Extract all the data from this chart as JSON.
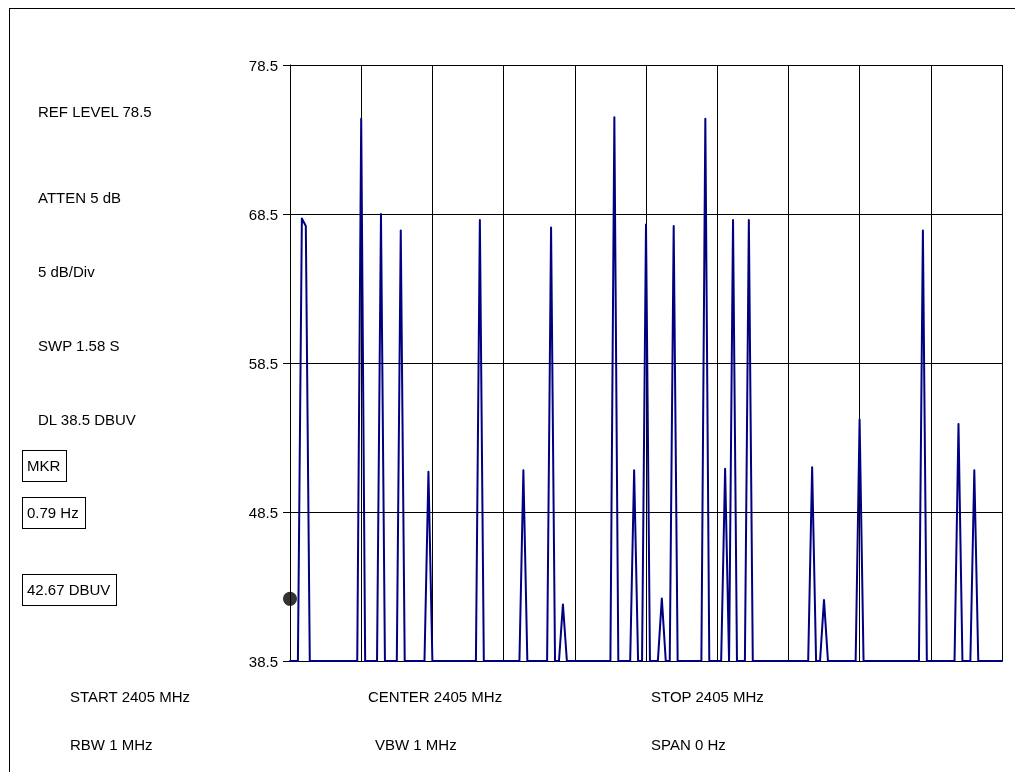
{
  "chart_data": {
    "type": "line",
    "annotations": [
      "REF LEVEL 78.5",
      "ATTEN 5 dB",
      "5 dB/Div",
      "SWP 1.58 S",
      "DL 38.5 DBUV",
      "MKR",
      "0.79 Hz",
      "42.67 DBUV",
      "START 2405 MHz",
      "CENTER 2405 MHz",
      "STOP 2405 MHz",
      "RBW 1 MHz",
      "VBW 1 MHz",
      "SPAN 0 Hz"
    ],
    "categories": [
      null,
      null,
      null,
      null,
      null,
      null,
      null,
      null,
      null,
      null,
      null,
      null,
      null,
      null,
      null,
      null,
      null,
      null,
      null,
      null,
      null,
      null,
      null,
      null,
      null,
      null,
      null,
      null,
      null,
      null,
      null,
      null,
      null,
      null,
      null,
      null,
      null,
      null,
      null,
      null,
      null,
      null,
      null,
      null,
      null,
      null,
      null,
      null,
      null,
      null,
      null,
      null,
      null,
      null,
      null,
      null,
      null,
      null,
      null,
      null,
      null,
      null,
      null,
      null,
      null,
      null,
      null,
      null,
      null,
      null,
      null,
      null,
      null,
      null,
      null,
      null,
      null,
      null,
      null,
      null,
      null,
      null,
      null,
      null,
      null,
      null,
      null,
      null,
      null,
      null,
      null,
      null,
      null,
      null,
      null,
      null,
      null,
      null,
      null,
      null,
      null,
      null,
      null,
      null,
      null,
      null,
      null,
      null,
      null,
      null,
      null,
      null,
      null,
      null,
      null,
      null,
      null,
      null,
      null,
      null,
      null,
      null,
      null,
      null,
      null,
      null,
      null,
      null,
      null,
      null,
      null,
      null,
      null,
      null,
      null,
      null,
      null,
      null,
      null,
      null,
      null,
      null,
      null,
      null,
      null,
      null,
      null,
      null,
      null,
      null,
      null,
      null,
      null,
      null,
      null,
      null,
      null,
      null,
      null,
      null,
      null,
      null,
      null,
      null,
      null,
      null,
      null,
      null,
      null,
      null,
      null,
      null,
      null,
      null,
      null,
      null,
      null,
      null,
      null,
      null,
      null
    ],
    "series": [
      {
        "color": "#000080",
        "values": [
          38.5,
          38.5,
          38.5,
          68.2,
          67.7,
          38.5,
          38.5,
          38.5,
          38.5,
          38.5,
          38.5,
          38.5,
          38.5,
          38.5,
          38.5,
          38.5,
          38.5,
          38.5,
          74.9,
          38.5,
          38.5,
          38.5,
          38.5,
          68.5,
          38.5,
          38.5,
          38.5,
          38.5,
          67.4,
          38.5,
          38.5,
          38.5,
          38.5,
          38.5,
          38.5,
          51.2,
          38.5,
          38.5,
          38.5,
          38.5,
          38.5,
          38.5,
          38.5,
          38.5,
          38.5,
          38.5,
          38.5,
          38.5,
          68.1,
          38.5,
          38.5,
          38.5,
          38.5,
          38.5,
          38.5,
          38.5,
          38.5,
          38.5,
          38.5,
          51.3,
          38.5,
          38.5,
          38.5,
          38.5,
          38.5,
          38.5,
          67.6,
          38.5,
          38.5,
          42.3,
          38.5,
          38.5,
          38.5,
          38.5,
          38.5,
          38.5,
          38.5,
          38.5,
          38.5,
          38.5,
          38.5,
          38.5,
          75.0,
          38.5,
          38.5,
          38.5,
          38.5,
          51.3,
          38.5,
          38.5,
          67.8,
          38.5,
          38.5,
          38.5,
          42.7,
          38.5,
          38.5,
          67.7,
          38.5,
          38.5,
          38.5,
          38.5,
          38.5,
          38.5,
          38.5,
          74.9,
          38.5,
          38.5,
          38.5,
          38.5,
          51.4,
          38.5,
          68.1,
          38.5,
          38.5,
          38.5,
          68.1,
          38.5,
          38.5,
          38.5,
          38.5,
          38.5,
          38.5,
          38.5,
          38.5,
          38.5,
          38.5,
          38.5,
          38.5,
          38.5,
          38.5,
          38.5,
          51.5,
          38.5,
          38.5,
          42.6,
          38.5,
          38.5,
          38.5,
          38.5,
          38.5,
          38.5,
          38.5,
          38.5,
          54.7,
          38.5,
          38.5,
          38.5,
          38.5,
          38.5,
          38.5,
          38.5,
          38.5,
          38.5,
          38.5,
          38.5,
          38.5,
          38.5,
          38.5,
          38.5,
          67.4,
          38.5,
          38.5,
          38.5,
          38.5,
          38.5,
          38.5,
          38.5,
          38.5,
          54.4,
          38.5,
          38.5,
          38.5,
          51.3,
          38.5,
          38.5,
          38.5,
          38.5,
          38.5,
          38.5,
          38.5
        ]
      },
      {
        "type": "scatter",
        "color": "#000000",
        "marker": "circle",
        "values": [
          42.67,
          null,
          null,
          null,
          null,
          null,
          null,
          null,
          null,
          null,
          null,
          null,
          null,
          null,
          null,
          null,
          null,
          null,
          null,
          null,
          null,
          null,
          null,
          null,
          null,
          null,
          null,
          null,
          null,
          null,
          null,
          null,
          null,
          null,
          null,
          null,
          null,
          null,
          null,
          null,
          null,
          null,
          null,
          null,
          null,
          null,
          null,
          null,
          null,
          null,
          null,
          null,
          null,
          null,
          null,
          null,
          null,
          null,
          null,
          null,
          null,
          null,
          null,
          null,
          null,
          null,
          null,
          null,
          null,
          null,
          null,
          null,
          null,
          null,
          null,
          null,
          null,
          null,
          null,
          null,
          null,
          null,
          null,
          null,
          null,
          null,
          null,
          null,
          null,
          null,
          null,
          null,
          null,
          null,
          null,
          null,
          null,
          null,
          null,
          null,
          null,
          null,
          null,
          null,
          null,
          null,
          null,
          null,
          null,
          null,
          null,
          null,
          null,
          null,
          null,
          null,
          null,
          null,
          null,
          null,
          null,
          null,
          null,
          null,
          null,
          null,
          null,
          null,
          null,
          null,
          null,
          null,
          null,
          null,
          null,
          null,
          null,
          null,
          null,
          null,
          null,
          null,
          null,
          null,
          null,
          null,
          null,
          null,
          null,
          null,
          null,
          null,
          null,
          null,
          null,
          null,
          null,
          null,
          null,
          null,
          null,
          null,
          null,
          null,
          null,
          null,
          null,
          null,
          null,
          null,
          null,
          null,
          null,
          null,
          null,
          null,
          null,
          null,
          null,
          null,
          null
        ]
      }
    ],
    "ylim": [
      38.5,
      78.5
    ],
    "yticks": [
      38.5,
      48.5,
      58.5,
      68.5,
      78.5
    ],
    "grid": true,
    "tick_labels": "y",
    "line_style": "solid"
  }
}
